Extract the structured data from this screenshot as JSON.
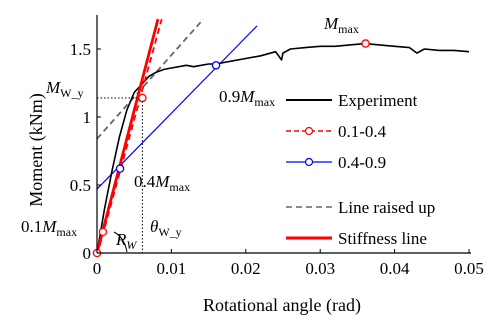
{
  "chart_data": {
    "type": "line",
    "xlabel": "Rotational angle (rad)",
    "ylabel": "Moment (kNm)",
    "xlim": [
      0,
      0.05
    ],
    "ylim": [
      0,
      1.75
    ],
    "x_ticks": [
      {
        "value": 0,
        "label": "0"
      },
      {
        "value": 0.01,
        "label": "0.01"
      },
      {
        "value": 0.02,
        "label": "0.02"
      },
      {
        "value": 0.03,
        "label": "0.03"
      },
      {
        "value": 0.04,
        "label": "0.04"
      },
      {
        "value": 0.05,
        "label": "0.05"
      }
    ],
    "y_ticks": [
      {
        "value": 0,
        "label": "0"
      },
      {
        "value": 0.5,
        "label": "0.5"
      },
      {
        "value": 1,
        "label": "1"
      },
      {
        "value": 1.5,
        "label": "1.5"
      }
    ],
    "grid": false,
    "legend_position": "right",
    "series": [
      {
        "name": "Experiment",
        "color": "#000000",
        "style": "solid",
        "x": [
          0,
          0.0005,
          0.001,
          0.002,
          0.003,
          0.004,
          0.005,
          0.006,
          0.007,
          0.008,
          0.009,
          0.01,
          0.011,
          0.012,
          0.013,
          0.014,
          0.015,
          0.016,
          0.018,
          0.02,
          0.022,
          0.024,
          0.0248,
          0.025,
          0.026,
          0.028,
          0.03,
          0.032,
          0.034,
          0.036,
          0.038,
          0.04,
          0.042,
          0.043,
          0.044,
          0.046,
          0.048,
          0.05
        ],
        "y": [
          0,
          0.16,
          0.32,
          0.6,
          0.85,
          1.05,
          1.18,
          1.24,
          1.3,
          1.33,
          1.35,
          1.36,
          1.37,
          1.38,
          1.37,
          1.38,
          1.39,
          1.39,
          1.41,
          1.43,
          1.45,
          1.48,
          1.42,
          1.47,
          1.5,
          1.51,
          1.52,
          1.52,
          1.53,
          1.54,
          1.53,
          1.52,
          1.51,
          1.47,
          1.5,
          1.49,
          1.49,
          1.48
        ]
      },
      {
        "name": "0.1-0.4",
        "color": "#ff0000",
        "style": "dashed",
        "marker": "circle",
        "x": [
          0,
          0.0087
        ],
        "y": [
          -0.02,
          1.72
        ]
      },
      {
        "name": "0.4-0.9",
        "color": "#0000ff",
        "style": "solid",
        "marker": "circle",
        "x": [
          0,
          0.0215
        ],
        "y": [
          0.47,
          1.67
        ]
      },
      {
        "name": "Line raised up",
        "color": "#666666",
        "style": "dashed",
        "x": [
          0,
          0.0143
        ],
        "y": [
          0.84,
          1.72
        ]
      },
      {
        "name": "Stiffness line",
        "color": "#ff0000",
        "style": "solid-thick",
        "x": [
          0,
          0.0082
        ],
        "y": [
          0,
          1.72
        ]
      }
    ],
    "points": [
      {
        "series": "0.1-0.4",
        "x": 0,
        "y": 0,
        "color": "#ff0000"
      },
      {
        "series": "0.1-0.4",
        "x": 0.0008,
        "y": 0.155,
        "color": "#ff0000"
      },
      {
        "series": "0.1-0.4",
        "x": 0.0061,
        "y": 1.14,
        "color": "#ff0000"
      },
      {
        "series": "0.1-0.4",
        "x": 0.0361,
        "y": 1.54,
        "color": "#ff0000"
      },
      {
        "series": "0.4-0.9",
        "x": 0.0031,
        "y": 0.62,
        "color": "#0000ff"
      },
      {
        "series": "0.4-0.9",
        "x": 0.016,
        "y": 1.38,
        "color": "#0000ff"
      }
    ],
    "guides": {
      "my_level": 1.14,
      "theta_w_y": 0.0061
    },
    "annotations": {
      "m_max": {
        "main": "M",
        "sub": "max"
      },
      "m_w_y": {
        "main": "M",
        "sub": "W_y"
      },
      "m09": {
        "prefix": "0.9",
        "main": "M",
        "sub": "max"
      },
      "m04": {
        "prefix": "0.4",
        "main": "M",
        "sub": "max"
      },
      "m01": {
        "prefix": "0.1",
        "main": "M",
        "sub": "max"
      },
      "rw": {
        "main": "R",
        "sub": "W"
      },
      "theta": {
        "main": "θ",
        "sub": "W_y"
      }
    }
  }
}
